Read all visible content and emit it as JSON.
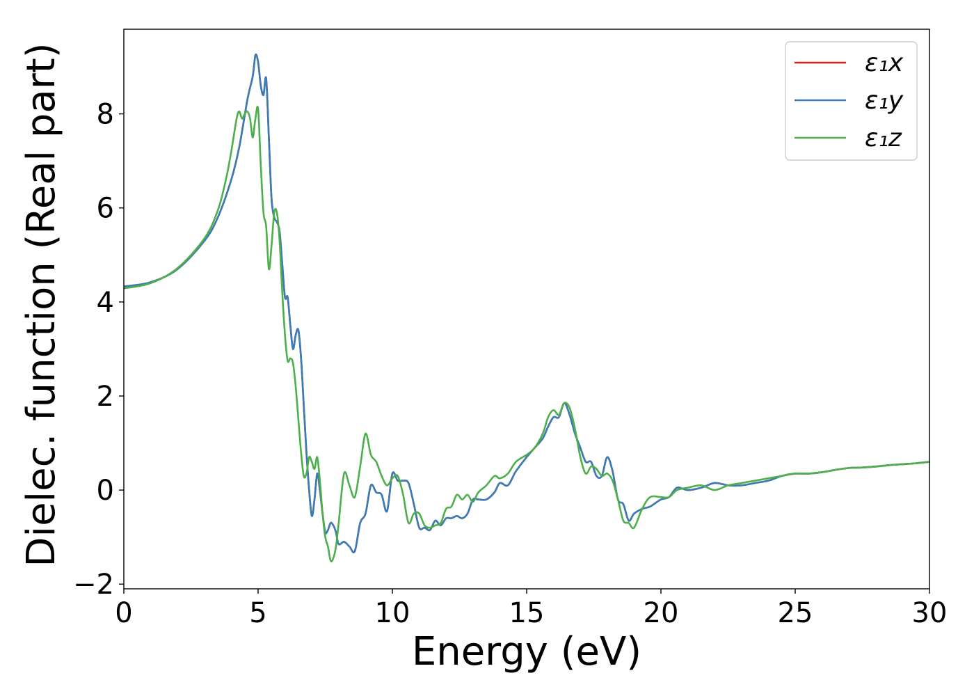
{
  "chart_data": {
    "type": "line",
    "xlabel": "Energy (eV)",
    "ylabel": "Dielec. function (Real part)",
    "xlim": [
      0,
      30
    ],
    "ylim": [
      -2.1,
      9.8
    ],
    "xticks": [
      0,
      5,
      10,
      15,
      20,
      25,
      30
    ],
    "yticks": [
      -2,
      0,
      2,
      4,
      6,
      8
    ],
    "xtick_labels": [
      "0",
      "5",
      "10",
      "15",
      "20",
      "25",
      "30"
    ],
    "ytick_labels": [
      "−2",
      "0",
      "2",
      "4",
      "6",
      "8"
    ],
    "grid": false,
    "legend": "top-right",
    "series": [
      {
        "name": "ε₁x",
        "color": "#e41a1c",
        "x": [
          0,
          1,
          2,
          3,
          3.5,
          4,
          4.3,
          4.6,
          4.8,
          4.9,
          5.0,
          5.1,
          5.2,
          5.3,
          5.4,
          5.5,
          5.6,
          5.7,
          5.8,
          5.9,
          6.0,
          6.1,
          6.2,
          6.3,
          6.4,
          6.5,
          6.6,
          6.7,
          6.8,
          6.9,
          7.0,
          7.1,
          7.2,
          7.3,
          7.4,
          7.5,
          7.6,
          7.7,
          7.8,
          7.9,
          8.0,
          8.2,
          8.4,
          8.6,
          8.8,
          9.0,
          9.2,
          9.4,
          9.6,
          9.8,
          10.0,
          10.2,
          10.4,
          10.6,
          10.8,
          11.0,
          11.2,
          11.4,
          11.6,
          11.8,
          12.0,
          12.2,
          12.4,
          12.6,
          12.8,
          13.0,
          13.2,
          13.5,
          13.8,
          14.0,
          14.3,
          14.6,
          15.0,
          15.3,
          15.6,
          15.8,
          16.0,
          16.2,
          16.4,
          16.6,
          16.8,
          17.0,
          17.2,
          17.4,
          17.6,
          17.8,
          18.0,
          18.2,
          18.4,
          18.6,
          18.8,
          19.0,
          19.3,
          19.6,
          20.0,
          20.3,
          20.6,
          21.0,
          21.5,
          22.0,
          22.5,
          23.0,
          23.5,
          24.0,
          24.5,
          25.0,
          25.5,
          26.0,
          26.5,
          27.0,
          27.5,
          28.0,
          28.5,
          29.0,
          29.5,
          30.0
        ],
        "y": [
          4.33,
          4.42,
          4.7,
          5.3,
          5.8,
          6.6,
          7.3,
          8.3,
          8.8,
          9.25,
          9.1,
          8.6,
          8.4,
          8.75,
          7.5,
          6.2,
          5.8,
          5.7,
          5.5,
          4.8,
          4.1,
          4.1,
          3.5,
          3.0,
          3.3,
          3.4,
          2.8,
          1.8,
          0.8,
          0.0,
          -0.55,
          -0.2,
          0.35,
          0.0,
          -0.5,
          -0.9,
          -0.85,
          -0.7,
          -0.75,
          -0.9,
          -1.15,
          -1.1,
          -1.2,
          -1.3,
          -0.7,
          -0.5,
          0.1,
          -0.05,
          -0.1,
          -0.45,
          0.35,
          0.2,
          0.2,
          0.15,
          -0.3,
          -0.8,
          -0.8,
          -0.85,
          -0.65,
          -0.75,
          -0.6,
          -0.6,
          -0.55,
          -0.6,
          -0.5,
          -0.2,
          -0.2,
          -0.2,
          -0.05,
          0.15,
          0.1,
          0.4,
          0.7,
          0.9,
          1.1,
          1.35,
          1.55,
          1.55,
          1.85,
          1.6,
          1.2,
          0.9,
          0.6,
          0.6,
          0.3,
          0.3,
          0.7,
          0.4,
          -0.2,
          -0.3,
          -0.65,
          -0.5,
          -0.4,
          -0.35,
          -0.2,
          -0.15,
          0.05,
          0.0,
          0.05,
          0.15,
          0.1,
          0.1,
          0.15,
          0.2,
          0.3,
          0.35,
          0.35,
          0.38,
          0.43,
          0.47,
          0.48,
          0.5,
          0.53,
          0.55,
          0.57,
          0.6
        ]
      },
      {
        "name": "ε₁y",
        "color": "#377eb8",
        "x": [
          0,
          1,
          2,
          3,
          3.5,
          4,
          4.3,
          4.6,
          4.8,
          4.9,
          5.0,
          5.1,
          5.2,
          5.3,
          5.4,
          5.5,
          5.6,
          5.7,
          5.8,
          5.9,
          6.0,
          6.1,
          6.2,
          6.3,
          6.4,
          6.5,
          6.6,
          6.7,
          6.8,
          6.9,
          7.0,
          7.1,
          7.2,
          7.3,
          7.4,
          7.5,
          7.6,
          7.7,
          7.8,
          7.9,
          8.0,
          8.2,
          8.4,
          8.6,
          8.8,
          9.0,
          9.2,
          9.4,
          9.6,
          9.8,
          10.0,
          10.2,
          10.4,
          10.6,
          10.8,
          11.0,
          11.2,
          11.4,
          11.6,
          11.8,
          12.0,
          12.2,
          12.4,
          12.6,
          12.8,
          13.0,
          13.2,
          13.5,
          13.8,
          14.0,
          14.3,
          14.6,
          15.0,
          15.3,
          15.6,
          15.8,
          16.0,
          16.2,
          16.4,
          16.6,
          16.8,
          17.0,
          17.2,
          17.4,
          17.6,
          17.8,
          18.0,
          18.2,
          18.4,
          18.6,
          18.8,
          19.0,
          19.3,
          19.6,
          20.0,
          20.3,
          20.6,
          21.0,
          21.5,
          22.0,
          22.5,
          23.0,
          23.5,
          24.0,
          24.5,
          25.0,
          25.5,
          26.0,
          26.5,
          27.0,
          27.5,
          28.0,
          28.5,
          29.0,
          29.5,
          30.0
        ],
        "y": [
          4.33,
          4.42,
          4.7,
          5.3,
          5.8,
          6.6,
          7.3,
          8.3,
          8.8,
          9.25,
          9.1,
          8.6,
          8.4,
          8.75,
          7.5,
          6.2,
          5.8,
          5.7,
          5.5,
          4.8,
          4.1,
          4.1,
          3.5,
          3.0,
          3.3,
          3.4,
          2.8,
          1.8,
          0.8,
          0.0,
          -0.55,
          -0.2,
          0.35,
          0.0,
          -0.5,
          -0.9,
          -0.85,
          -0.7,
          -0.75,
          -0.9,
          -1.15,
          -1.1,
          -1.2,
          -1.3,
          -0.7,
          -0.5,
          0.1,
          -0.05,
          -0.1,
          -0.45,
          0.35,
          0.2,
          0.2,
          0.15,
          -0.3,
          -0.8,
          -0.8,
          -0.85,
          -0.65,
          -0.75,
          -0.6,
          -0.6,
          -0.55,
          -0.6,
          -0.5,
          -0.2,
          -0.2,
          -0.2,
          -0.05,
          0.15,
          0.1,
          0.4,
          0.7,
          0.9,
          1.1,
          1.35,
          1.55,
          1.55,
          1.85,
          1.6,
          1.2,
          0.9,
          0.6,
          0.6,
          0.3,
          0.3,
          0.7,
          0.4,
          -0.2,
          -0.3,
          -0.65,
          -0.5,
          -0.4,
          -0.35,
          -0.2,
          -0.15,
          0.05,
          0.0,
          0.05,
          0.15,
          0.1,
          0.1,
          0.15,
          0.2,
          0.3,
          0.35,
          0.35,
          0.38,
          0.43,
          0.47,
          0.48,
          0.5,
          0.53,
          0.55,
          0.57,
          0.6
        ]
      },
      {
        "name": "ε₁z",
        "color": "#4daf4a",
        "x": [
          0,
          1,
          2,
          3,
          3.5,
          3.8,
          4.0,
          4.2,
          4.3,
          4.4,
          4.5,
          4.6,
          4.7,
          4.8,
          4.9,
          5.0,
          5.1,
          5.2,
          5.3,
          5.4,
          5.5,
          5.6,
          5.7,
          5.8,
          5.9,
          6.0,
          6.1,
          6.2,
          6.3,
          6.4,
          6.5,
          6.6,
          6.7,
          6.8,
          6.9,
          7.0,
          7.1,
          7.2,
          7.3,
          7.4,
          7.5,
          7.6,
          7.7,
          7.8,
          7.9,
          8.0,
          8.2,
          8.4,
          8.6,
          8.8,
          9.0,
          9.2,
          9.4,
          9.6,
          9.8,
          10.0,
          10.2,
          10.4,
          10.6,
          10.8,
          11.0,
          11.2,
          11.4,
          11.6,
          11.8,
          12.0,
          12.2,
          12.4,
          12.6,
          12.8,
          13.0,
          13.2,
          13.5,
          13.8,
          14.0,
          14.3,
          14.6,
          15.0,
          15.3,
          15.6,
          15.8,
          16.0,
          16.2,
          16.4,
          16.6,
          16.8,
          17.0,
          17.2,
          17.4,
          17.6,
          17.8,
          18.0,
          18.2,
          18.4,
          18.6,
          18.8,
          19.0,
          19.3,
          19.6,
          20.0,
          20.3,
          20.6,
          21.0,
          21.5,
          22.0,
          22.5,
          23.0,
          23.5,
          24.0,
          24.5,
          25.0,
          25.5,
          26.0,
          26.5,
          27.0,
          27.5,
          28.0,
          28.5,
          29.0,
          29.5,
          30.0
        ],
        "y": [
          4.29,
          4.4,
          4.72,
          5.35,
          5.95,
          6.6,
          7.2,
          7.9,
          8.05,
          7.9,
          8.0,
          8.05,
          7.9,
          7.5,
          7.9,
          8.1,
          6.9,
          5.9,
          5.6,
          4.7,
          5.2,
          5.9,
          5.9,
          5.3,
          4.2,
          3.3,
          2.75,
          2.8,
          2.7,
          2.2,
          1.5,
          0.8,
          0.3,
          0.35,
          0.7,
          0.6,
          0.45,
          0.7,
          0.2,
          -0.5,
          -1.0,
          -1.2,
          -1.5,
          -1.45,
          -1.2,
          -0.7,
          0.35,
          0.1,
          -0.15,
          0.5,
          1.2,
          0.75,
          0.6,
          0.3,
          0.1,
          0.25,
          0.3,
          -0.1,
          -0.7,
          -0.5,
          -0.5,
          -0.75,
          -0.8,
          -0.75,
          -0.7,
          -0.4,
          -0.35,
          -0.1,
          -0.2,
          -0.1,
          -0.25,
          -0.05,
          0.1,
          0.3,
          0.25,
          0.35,
          0.6,
          0.75,
          0.9,
          1.2,
          1.55,
          1.7,
          1.6,
          1.85,
          1.75,
          1.3,
          0.7,
          0.35,
          0.5,
          0.45,
          0.3,
          0.35,
          0.2,
          -0.2,
          -0.65,
          -0.7,
          -0.8,
          -0.4,
          -0.15,
          -0.15,
          -0.15,
          0.0,
          0.05,
          0.1,
          0.0,
          0.1,
          0.15,
          0.2,
          0.25,
          0.3,
          0.35,
          0.35,
          0.38,
          0.43,
          0.47,
          0.48,
          0.5,
          0.53,
          0.55,
          0.57,
          0.6
        ]
      }
    ]
  }
}
